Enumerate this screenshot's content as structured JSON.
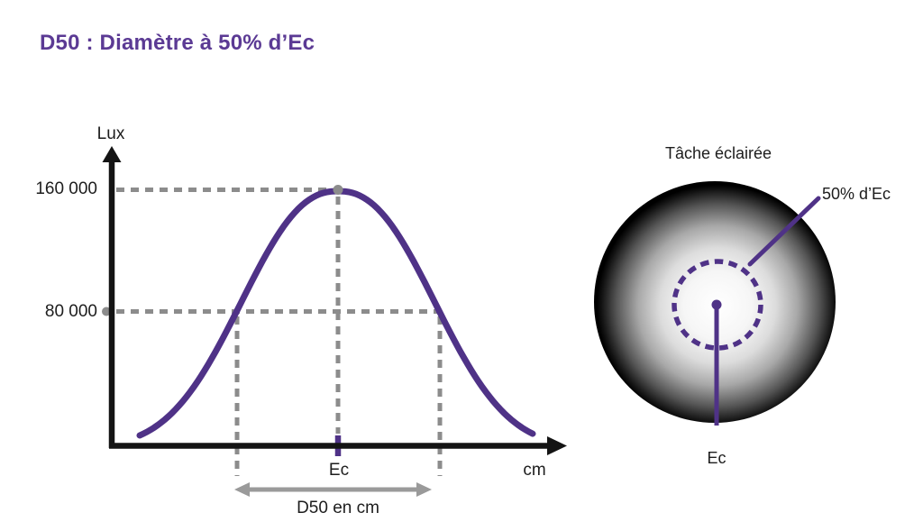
{
  "title": "D50 : Diamètre à 50% d’Ec",
  "colors": {
    "purple": "#4f3287",
    "title_purple": "#5b3a94",
    "dash_gray": "#8c8c8c",
    "arrow_gray": "#9a9a9a",
    "axis_black": "#141414"
  },
  "chart_data": {
    "type": "line",
    "title": "",
    "xlabel": "cm",
    "ylabel": "Lux",
    "ytick_values": [
      160000,
      80000
    ],
    "ytick_labels": [
      "160 000",
      "80 000"
    ],
    "grid": "dashed gray guide lines at 160 000 and 80 000 lux, with dashed verticals at the peak and at the two half-peak crossings",
    "legend": null,
    "curve": {
      "shape": "bell",
      "peak_value": 160000,
      "half_peak_value": 80000,
      "peak_position_label": "Ec",
      "width_annotation": "D50 en cm",
      "description": "Illuminance profile across the light spot; D50 is the diameter where illuminance falls to 50% of the central value Ec (160 000 lux peak, 80 000 lux at half)."
    },
    "annotations": {
      "peak_x_label": "Ec",
      "d50_arrow_label": "D50 en cm"
    }
  },
  "spot_diagram": {
    "title": "Tâche éclairée",
    "label_50_percent": "50% d’Ec",
    "label_center": "Ec"
  }
}
